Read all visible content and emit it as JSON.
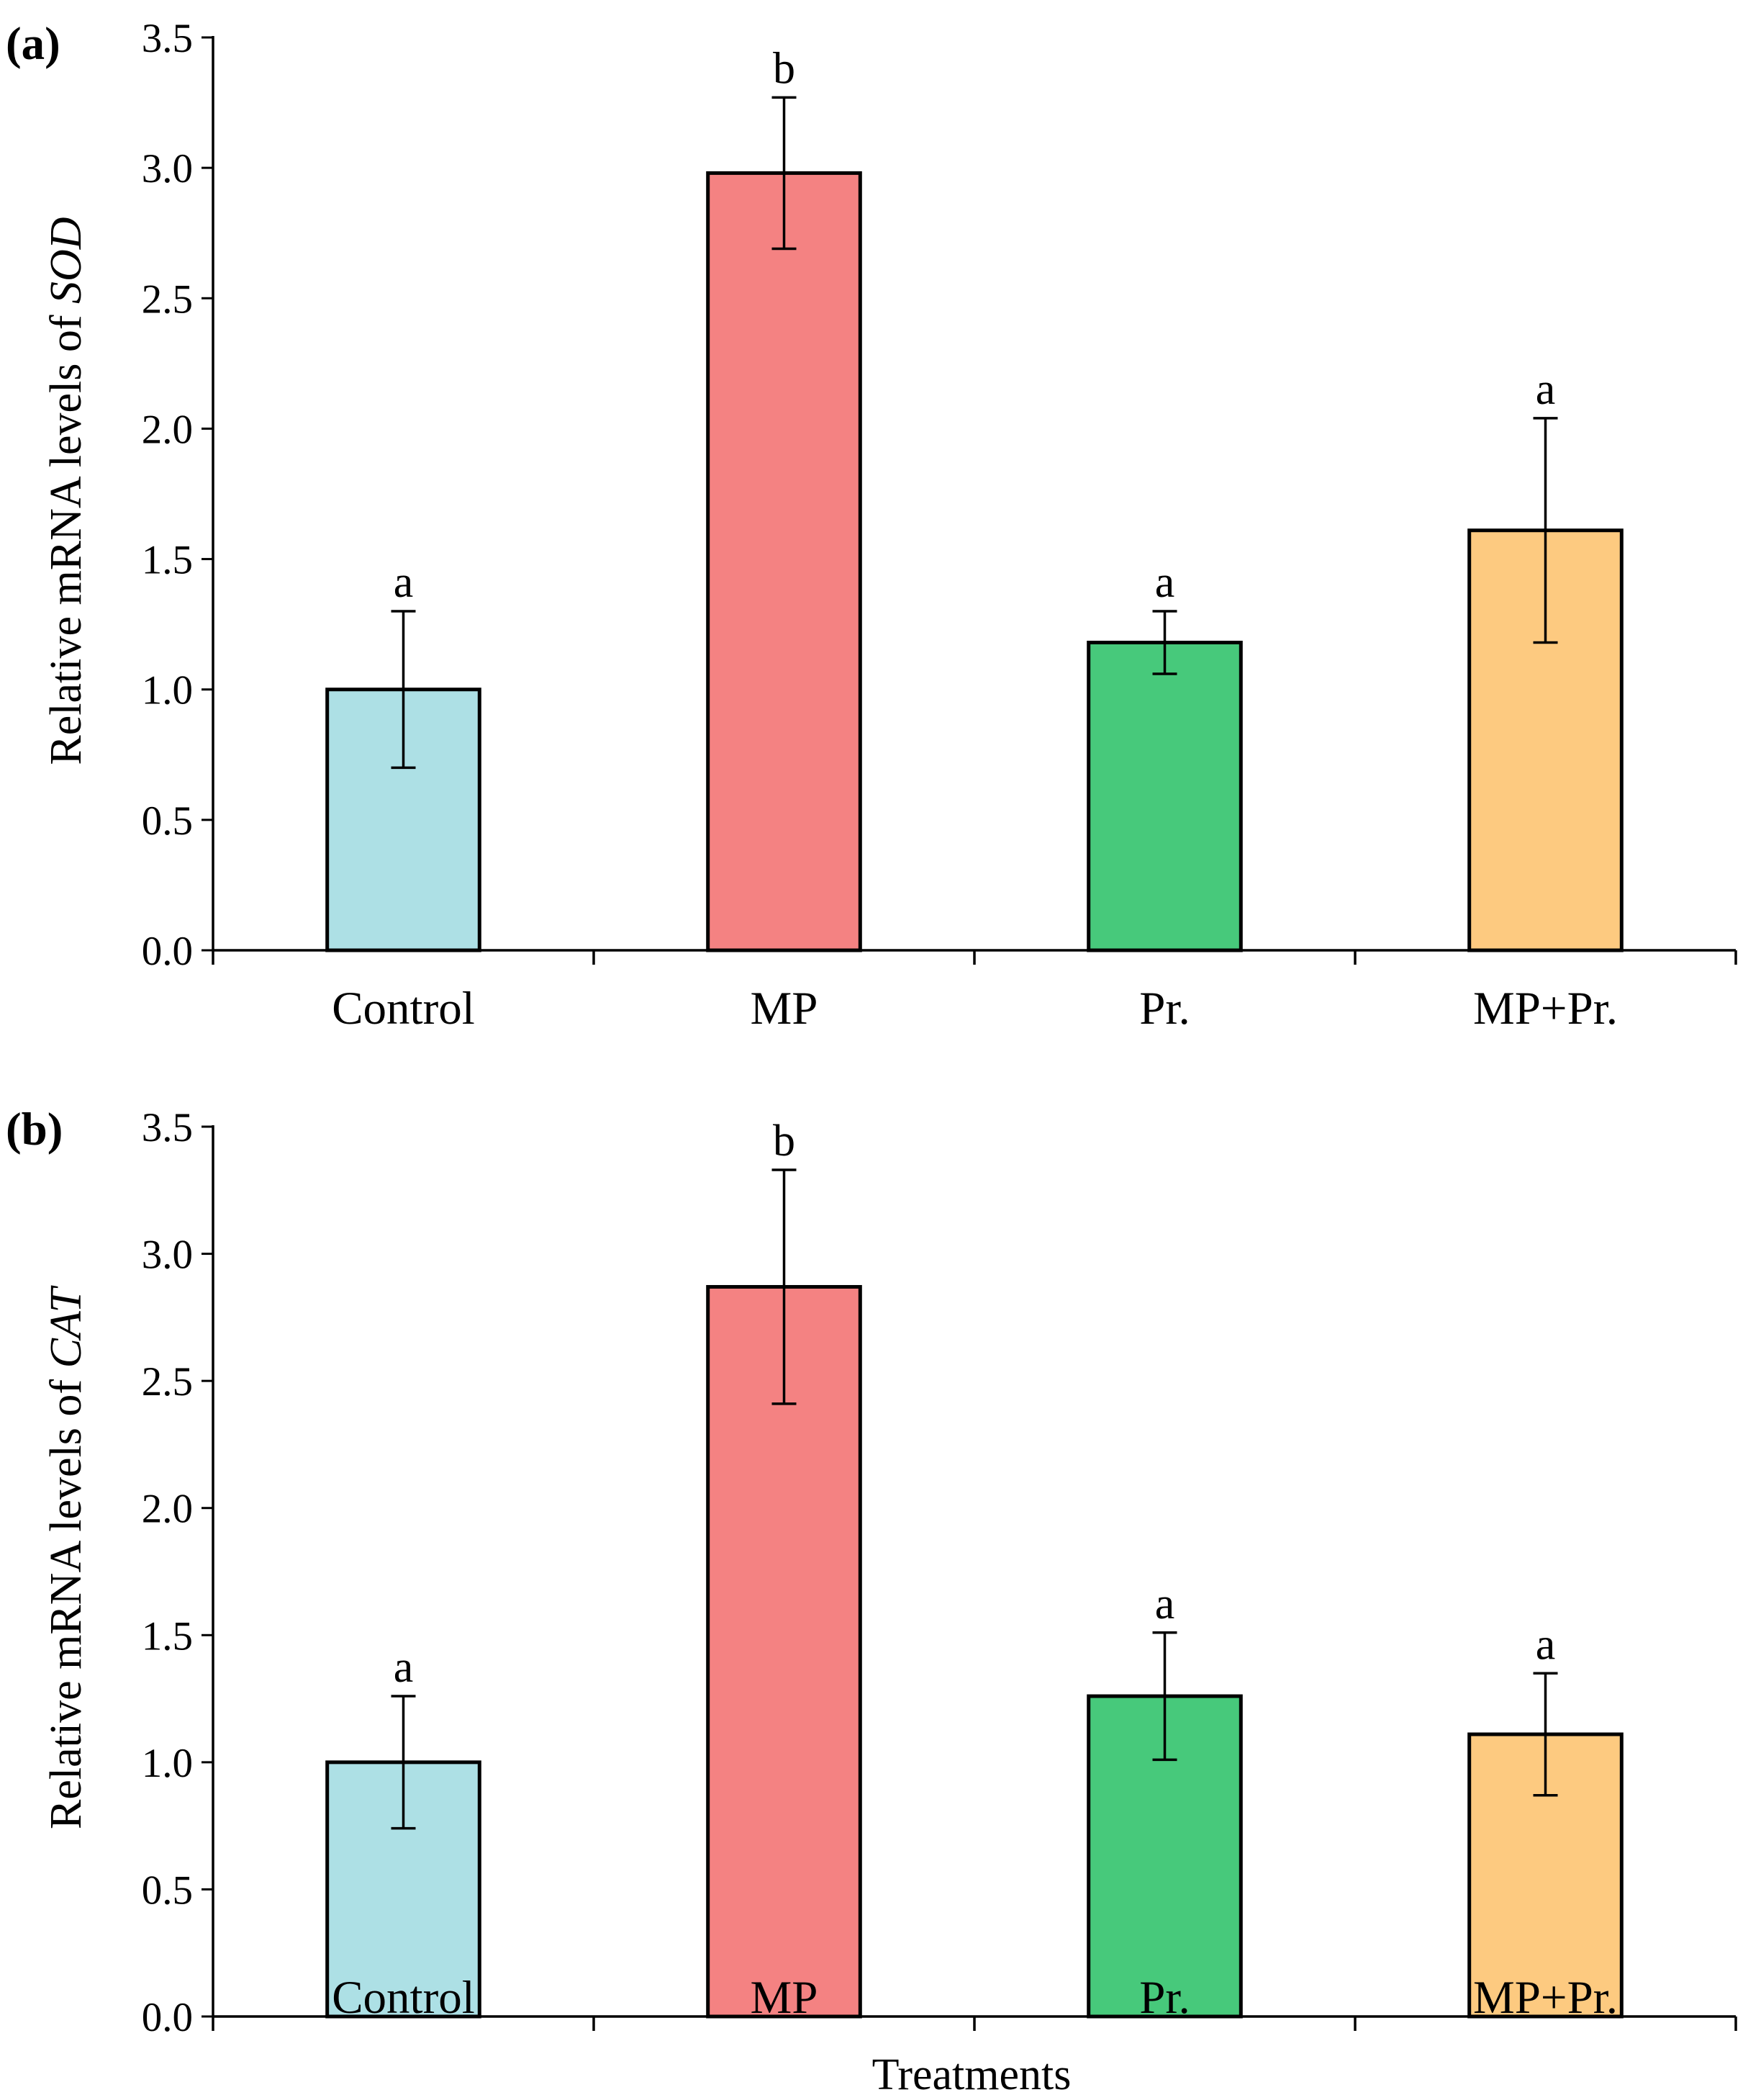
{
  "chart_data": [
    {
      "type": "bar",
      "panel_label": "(a)",
      "categories": [
        "Control",
        "MP",
        "Pr.",
        "MP+Pr."
      ],
      "values": [
        1.0,
        2.98,
        1.18,
        1.61
      ],
      "errors": [
        0.3,
        0.29,
        0.12,
        0.43
      ],
      "significance": [
        "a",
        "b",
        "a",
        "a"
      ],
      "colors": [
        "#ade0e5",
        "#f48282",
        "#47c97b",
        "#fdca80"
      ],
      "ylabel_prefix": "Relative mRNA levels of ",
      "ylabel_gene": "SOD",
      "xlabel": "",
      "ylim": [
        0,
        3.5
      ],
      "yticks": [
        "0.0",
        "0.5",
        "1.0",
        "1.5",
        "2.0",
        "2.5",
        "3.0",
        "3.5"
      ],
      "grid": false
    },
    {
      "type": "bar",
      "panel_label": "(b)",
      "categories": [
        "Control",
        "MP",
        "Pr.",
        "MP+Pr."
      ],
      "values": [
        1.0,
        2.87,
        1.26,
        1.11
      ],
      "errors": [
        0.26,
        0.46,
        0.25,
        0.24
      ],
      "significance": [
        "a",
        "b",
        "a",
        "a"
      ],
      "colors": [
        "#ade0e5",
        "#f48282",
        "#47c97b",
        "#fdca80"
      ],
      "ylabel_prefix": "Relative mRNA levels of ",
      "ylabel_gene": "CAT",
      "xlabel": "Treatments",
      "ylim": [
        0,
        3.5
      ],
      "yticks": [
        "0.0",
        "0.5",
        "1.0",
        "1.5",
        "2.0",
        "2.5",
        "3.0",
        "3.5"
      ],
      "grid": false
    }
  ]
}
